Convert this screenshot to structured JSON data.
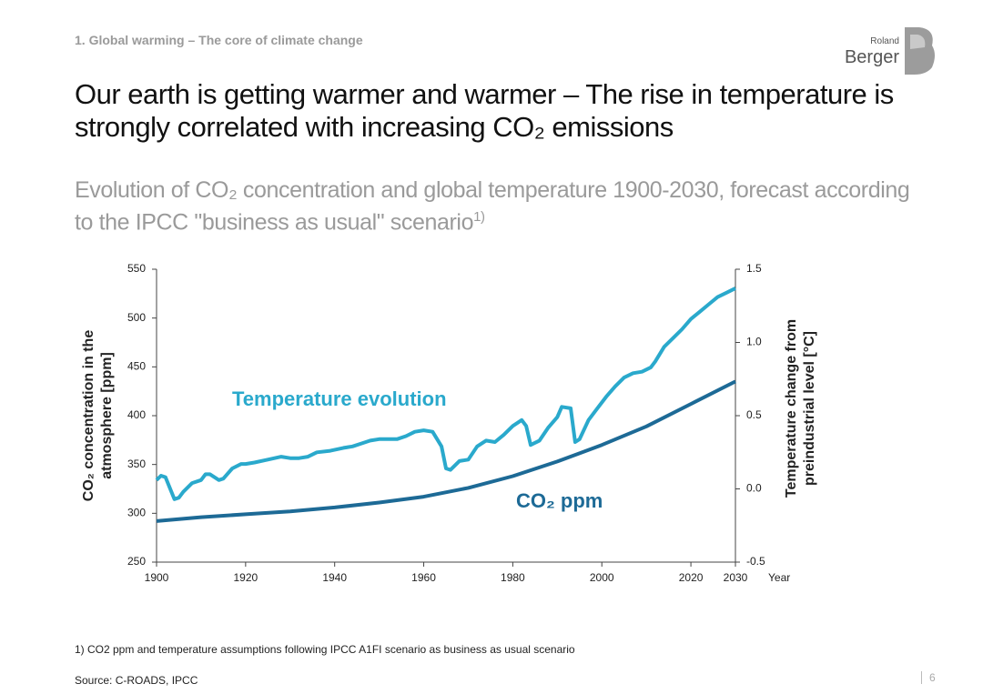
{
  "header": "1. Global warming – The core of climate change",
  "logo": {
    "line1": "Roland",
    "line2": "Berger"
  },
  "title": "Our earth is getting warmer and warmer – The rise in temperature is strongly correlated with increasing CO₂ emissions",
  "subtitle": {
    "text": "Evolution of CO₂ concentration and global temperature 1900-2030, forecast according to the IPCC \"business as usual\" scenario",
    "note_marker": "1)"
  },
  "chart_data": {
    "type": "line",
    "ylabel": [
      "CO₂ concentration in the",
      "atmosphere [ppm]"
    ],
    "y2label": [
      "Temperature change from",
      "preindustrial level [°C]"
    ],
    "xlabel": "Year",
    "xlim": [
      1900,
      2030
    ],
    "xticks": [
      1900,
      1920,
      1940,
      1960,
      1980,
      2000,
      2020,
      2030
    ],
    "ylim": [
      250,
      550
    ],
    "yticks": [
      250,
      300,
      350,
      400,
      450,
      500,
      550
    ],
    "y2lim": [
      -0.5,
      1.5
    ],
    "y2ticks": [
      -0.5,
      {
        "value": 0,
        "label": "0.0"
      },
      0.5,
      {
        "value": 1,
        "label": "1.0"
      },
      1.5
    ],
    "series": [
      {
        "name": "Temperature evolution",
        "color": "#2aa9cc",
        "axis": "y2",
        "x": [
          1900,
          1901,
          1902,
          1904,
          1905,
          1906,
          1908,
          1910,
          1911,
          1912,
          1914,
          1915,
          1917,
          1919,
          1920,
          1922,
          1925,
          1928,
          1930,
          1932,
          1934,
          1936,
          1939,
          1942,
          1944,
          1946,
          1948,
          1950,
          1952,
          1954,
          1956,
          1958,
          1960,
          1962,
          1964,
          1965,
          1966,
          1968,
          1970,
          1972,
          1974,
          1976,
          1978,
          1980,
          1982,
          1983,
          1984,
          1986,
          1988,
          1990,
          1991,
          1993,
          1994,
          1995,
          1997,
          1999,
          2001,
          2003,
          2005,
          2007,
          2009,
          2011,
          2012,
          2014,
          2016,
          2018,
          2020,
          2022,
          2024,
          2026,
          2028,
          2030
        ],
        "values": [
          0.06,
          0.09,
          0.08,
          -0.07,
          -0.06,
          -0.02,
          0.04,
          0.06,
          0.1,
          0.1,
          0.06,
          0.07,
          0.14,
          0.17,
          0.17,
          0.18,
          0.2,
          0.22,
          0.21,
          0.21,
          0.22,
          0.25,
          0.26,
          0.28,
          0.29,
          0.31,
          0.33,
          0.34,
          0.34,
          0.34,
          0.36,
          0.39,
          0.4,
          0.39,
          0.29,
          0.14,
          0.13,
          0.19,
          0.2,
          0.29,
          0.33,
          0.32,
          0.37,
          0.43,
          0.47,
          0.43,
          0.3,
          0.33,
          0.42,
          0.49,
          0.56,
          0.55,
          0.32,
          0.34,
          0.47,
          0.55,
          0.63,
          0.7,
          0.76,
          0.79,
          0.8,
          0.83,
          0.87,
          0.97,
          1.03,
          1.09,
          1.16,
          1.21,
          1.26,
          1.31,
          1.34,
          1.37
        ]
      },
      {
        "name": "CO₂ ppm",
        "color": "#1d6a96",
        "x": [
          1900,
          1910,
          1920,
          1930,
          1940,
          1950,
          1960,
          1970,
          1980,
          1990,
          2000,
          2010,
          2020,
          2030
        ],
        "values": [
          292,
          296,
          299,
          302,
          306,
          311,
          317,
          326,
          338,
          353,
          370,
          389,
          412,
          435
        ]
      }
    ]
  },
  "footnote": "1) CO2 ppm and temperature assumptions following IPCC A1FI scenario as business as usual scenario",
  "source": "Source: C-ROADS, IPCC",
  "page_number": "6"
}
